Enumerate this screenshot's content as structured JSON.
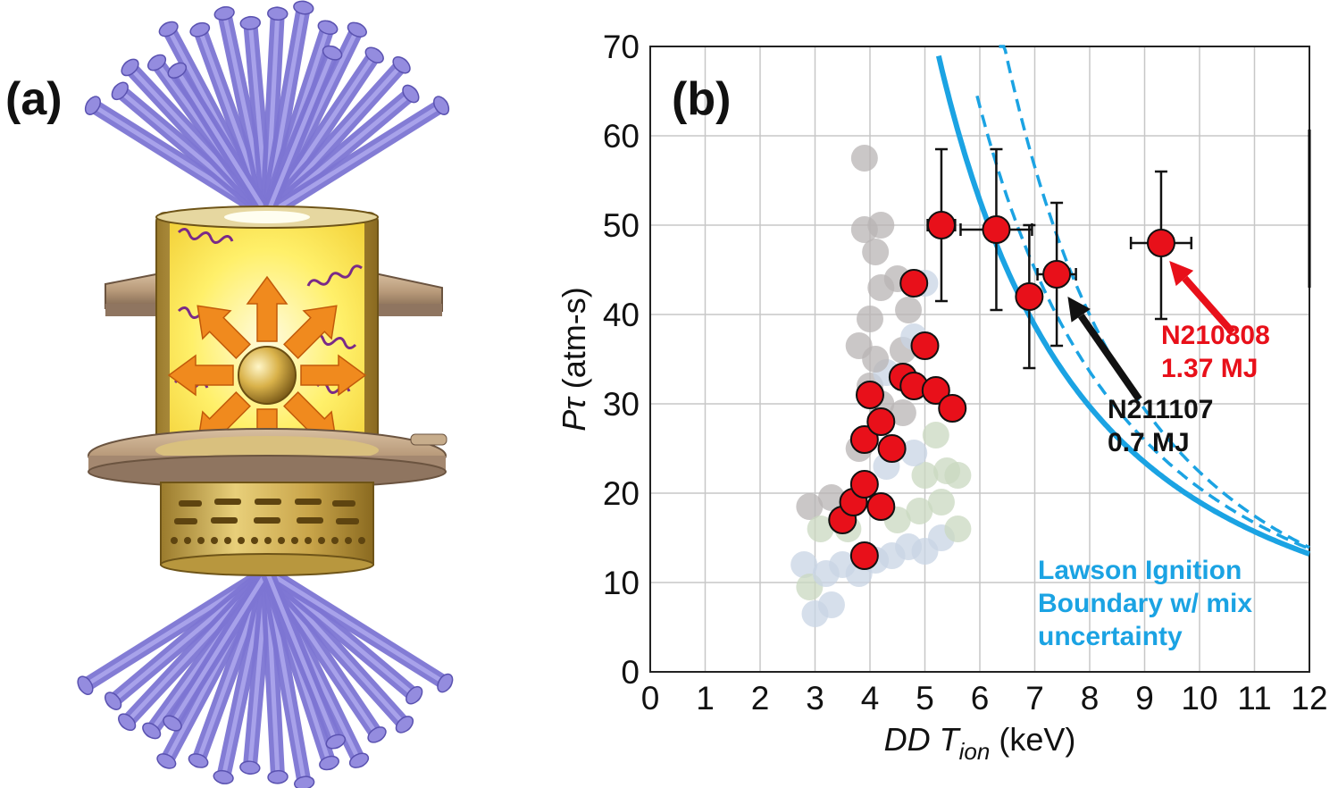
{
  "panel_a": {
    "label": "(a)"
  },
  "chart_data": {
    "type": "scatter",
    "panel_label": "(b)",
    "xlabel_parts": [
      "DD T",
      "ion",
      " (keV)"
    ],
    "ylabel_parts": [
      "P",
      "τ",
      " (atm-s)"
    ],
    "xlim": [
      0,
      12
    ],
    "ylim": [
      0,
      70
    ],
    "x_ticks": [
      0,
      1,
      2,
      3,
      4,
      5,
      6,
      7,
      8,
      9,
      10,
      11,
      12
    ],
    "y_ticks": [
      0,
      10,
      20,
      30,
      40,
      50,
      60,
      70
    ],
    "grid": true,
    "colors": {
      "highlight": "#e8101a",
      "boundary": "#1ba3e3",
      "faded_grey": "#b8b4b4",
      "faded_green": "#c9d8c0",
      "faded_blue": "#c8d4e4"
    },
    "series": [
      {
        "name": "",
        "color": "#e8101a",
        "points": [
          {
            "x": 3.5,
            "y": 17
          },
          {
            "x": 3.7,
            "y": 19
          },
          {
            "x": 3.9,
            "y": 21
          },
          {
            "x": 4.2,
            "y": 18.5
          },
          {
            "x": 3.9,
            "y": 13
          },
          {
            "x": 3.9,
            "y": 26
          },
          {
            "x": 4.0,
            "y": 31
          },
          {
            "x": 4.2,
            "y": 28
          },
          {
            "x": 4.4,
            "y": 25
          },
          {
            "x": 4.6,
            "y": 33
          },
          {
            "x": 4.8,
            "y": 32
          },
          {
            "x": 5.0,
            "y": 36.5
          },
          {
            "x": 4.8,
            "y": 43.5
          },
          {
            "x": 5.2,
            "y": 31.5
          },
          {
            "x": 5.5,
            "y": 29.5
          },
          {
            "x": 5.3,
            "y": 50,
            "xerr": 0.25,
            "yerr_lo": 8.5,
            "yerr_hi": 8.5
          },
          {
            "x": 6.3,
            "y": 49.5,
            "xerr": 0.65,
            "yerr_lo": 9,
            "yerr_hi": 9
          },
          {
            "x": 6.9,
            "y": 42,
            "xerr": 0.2,
            "yerr_lo": 8,
            "yerr_hi": 8
          },
          {
            "x": 7.4,
            "y": 44.5,
            "xerr": 0.35,
            "yerr_lo": 8,
            "yerr_hi": 8
          },
          {
            "x": 9.3,
            "y": 48,
            "xerr": 0.55,
            "yerr_lo": 8.5,
            "yerr_hi": 8
          }
        ]
      },
      {
        "name": "",
        "faded": true,
        "points": [
          {
            "x": 2.8,
            "y": 12,
            "c": "faded_blue"
          },
          {
            "x": 3.0,
            "y": 6.5,
            "c": "faded_blue"
          },
          {
            "x": 3.3,
            "y": 7.5,
            "c": "faded_blue"
          },
          {
            "x": 2.9,
            "y": 9.5,
            "c": "faded_green"
          },
          {
            "x": 3.2,
            "y": 11,
            "c": "faded_blue"
          },
          {
            "x": 3.5,
            "y": 12,
            "c": "faded_blue"
          },
          {
            "x": 3.8,
            "y": 11,
            "c": "faded_blue"
          },
          {
            "x": 4.1,
            "y": 12.5,
            "c": "faded_blue"
          },
          {
            "x": 4.4,
            "y": 13,
            "c": "faded_blue"
          },
          {
            "x": 4.7,
            "y": 14,
            "c": "faded_blue"
          },
          {
            "x": 5.0,
            "y": 13.5,
            "c": "faded_blue"
          },
          {
            "x": 5.3,
            "y": 15,
            "c": "faded_blue"
          },
          {
            "x": 2.9,
            "y": 18.5,
            "c": "faded_grey"
          },
          {
            "x": 3.1,
            "y": 16,
            "c": "faded_green"
          },
          {
            "x": 3.3,
            "y": 19.5,
            "c": "faded_grey"
          },
          {
            "x": 3.6,
            "y": 16,
            "c": "faded_green"
          },
          {
            "x": 4.5,
            "y": 17,
            "c": "faded_green"
          },
          {
            "x": 4.9,
            "y": 18,
            "c": "faded_green"
          },
          {
            "x": 5.3,
            "y": 19,
            "c": "faded_green"
          },
          {
            "x": 5.6,
            "y": 16,
            "c": "faded_green"
          },
          {
            "x": 5.0,
            "y": 22,
            "c": "faded_green"
          },
          {
            "x": 5.4,
            "y": 22.5,
            "c": "faded_green"
          },
          {
            "x": 5.6,
            "y": 22,
            "c": "faded_green"
          },
          {
            "x": 4.3,
            "y": 23,
            "c": "faded_blue"
          },
          {
            "x": 4.8,
            "y": 24.5,
            "c": "faded_blue"
          },
          {
            "x": 3.8,
            "y": 25,
            "c": "faded_grey"
          },
          {
            "x": 5.2,
            "y": 26.5,
            "c": "faded_green"
          },
          {
            "x": 4.0,
            "y": 32,
            "c": "faded_grey"
          },
          {
            "x": 4.2,
            "y": 30,
            "c": "faded_grey"
          },
          {
            "x": 4.6,
            "y": 29,
            "c": "faded_grey"
          },
          {
            "x": 4.3,
            "y": 33.5,
            "c": "faded_blue"
          },
          {
            "x": 4.6,
            "y": 36,
            "c": "faded_grey"
          },
          {
            "x": 3.8,
            "y": 36.5,
            "c": "faded_grey"
          },
          {
            "x": 4.1,
            "y": 35,
            "c": "faded_grey"
          },
          {
            "x": 4.8,
            "y": 37.5,
            "c": "faded_blue"
          },
          {
            "x": 4.0,
            "y": 39.5,
            "c": "faded_grey"
          },
          {
            "x": 4.7,
            "y": 40.5,
            "c": "faded_grey"
          },
          {
            "x": 4.2,
            "y": 43,
            "c": "faded_grey"
          },
          {
            "x": 4.5,
            "y": 44,
            "c": "faded_grey"
          },
          {
            "x": 5.0,
            "y": 43.5,
            "c": "faded_blue"
          },
          {
            "x": 4.1,
            "y": 47,
            "c": "faded_grey"
          },
          {
            "x": 3.9,
            "y": 49.5,
            "c": "faded_grey"
          },
          {
            "x": 4.2,
            "y": 50,
            "c": "faded_grey"
          },
          {
            "x": 3.9,
            "y": 57.5,
            "c": "faded_grey"
          }
        ]
      }
    ],
    "curves": [
      {
        "label": "solid",
        "style": "solid",
        "c": 0.46,
        "exp": 2.0,
        "x0": 5.25,
        "x1": 12
      },
      {
        "label": "dashed-1",
        "style": "dashed",
        "c": 0.5,
        "exp": 2.2,
        "x0": 5.95,
        "x1": 12
      },
      {
        "label": "dashed-2",
        "style": "dashed",
        "c": 0.38,
        "exp": 2.6,
        "x0": 6.35,
        "x1": 12
      }
    ],
    "annotations": [
      {
        "id": "n210808",
        "lines": [
          "N210808",
          "1.37 MJ"
        ],
        "color": "#e8101a",
        "arrow_to": {
          "x": 9.45,
          "y": 46
        },
        "arrow_from": {
          "x": 10.6,
          "y": 38
        }
      },
      {
        "id": "n211107",
        "lines": [
          "N211107",
          "0.7 MJ"
        ],
        "color": "#111111",
        "arrow_to": {
          "x": 7.6,
          "y": 42
        },
        "arrow_from": {
          "x": 8.9,
          "y": 30.5
        }
      },
      {
        "id": "lawson",
        "lines": [
          "Lawson Ignition",
          "Boundary w/ mix",
          "uncertainty"
        ],
        "color": "#1ba3e3"
      }
    ]
  }
}
